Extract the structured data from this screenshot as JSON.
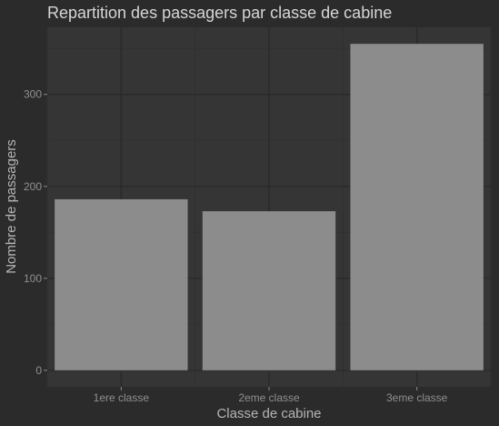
{
  "chart_data": {
    "type": "bar",
    "title": "Repartition des passagers par classe de cabine",
    "xlabel": "Classe de cabine",
    "ylabel": "Nombre de passagers",
    "categories": [
      "1ere classe",
      "2eme classe",
      "3eme classe"
    ],
    "values": [
      186,
      173,
      355
    ],
    "ylim": [
      -18,
      373
    ],
    "yticks": [
      0,
      100,
      200,
      300
    ],
    "grid": true,
    "colors": {
      "background": "#2b2b2b",
      "panel": "#353535",
      "grid_major": "#2a2a2a",
      "grid_minor": "#303030",
      "bar": "#8c8c8c"
    }
  }
}
